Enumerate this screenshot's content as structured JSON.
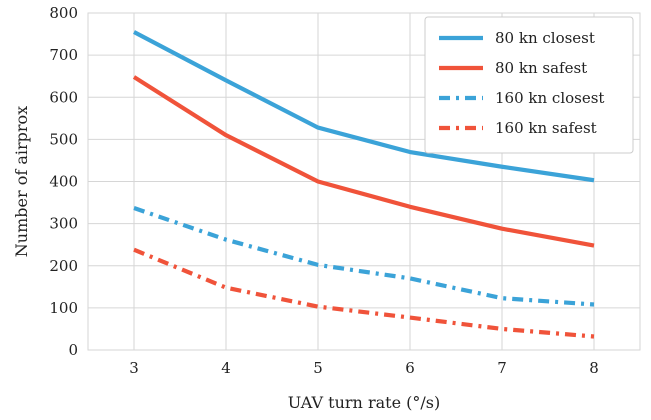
{
  "chart_data": {
    "type": "line",
    "xlabel": "UAV turn rate (°/s)",
    "ylabel": "Number of airprox",
    "x": [
      3,
      4,
      5,
      6,
      7,
      8
    ],
    "xticks": [
      "3",
      "4",
      "5",
      "6",
      "7",
      "8"
    ],
    "yticks": [
      "0",
      "100",
      "200",
      "300",
      "400",
      "500",
      "600",
      "700",
      "800"
    ],
    "xlim": [
      2.5,
      8.5
    ],
    "ylim": [
      0,
      800
    ],
    "grid": true,
    "legend_position": "top-right",
    "series": [
      {
        "name": "80 kn closest",
        "values": [
          755,
          640,
          528,
          470,
          435,
          403
        ],
        "color": "#3ba3d8",
        "style": "solid"
      },
      {
        "name": "80 kn safest",
        "values": [
          648,
          510,
          400,
          340,
          288,
          248
        ],
        "color": "#f0533a",
        "style": "solid"
      },
      {
        "name": "160 kn closest",
        "values": [
          337,
          262,
          202,
          170,
          123,
          108
        ],
        "color": "#3ba3d8",
        "style": "dashdot"
      },
      {
        "name": "160 kn safest",
        "values": [
          238,
          148,
          103,
          77,
          50,
          32
        ],
        "color": "#f0533a",
        "style": "dashdot"
      }
    ]
  }
}
